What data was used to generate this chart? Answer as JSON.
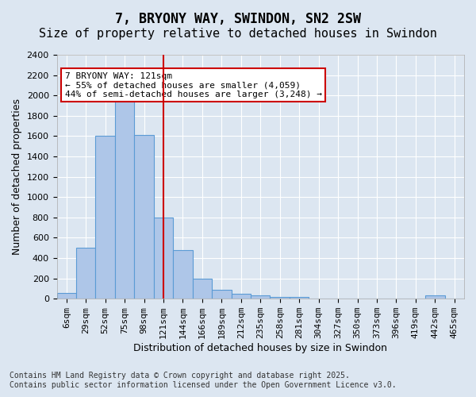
{
  "title": "7, BRYONY WAY, SWINDON, SN2 2SW",
  "subtitle": "Size of property relative to detached houses in Swindon",
  "xlabel": "Distribution of detached houses by size in Swindon",
  "ylabel": "Number of detached properties",
  "footer_line1": "Contains HM Land Registry data © Crown copyright and database right 2025.",
  "footer_line2": "Contains public sector information licensed under the Open Government Licence v3.0.",
  "categories": [
    "6sqm",
    "29sqm",
    "52sqm",
    "75sqm",
    "98sqm",
    "121sqm",
    "144sqm",
    "166sqm",
    "189sqm",
    "212sqm",
    "235sqm",
    "258sqm",
    "281sqm",
    "304sqm",
    "327sqm",
    "350sqm",
    "373sqm",
    "396sqm",
    "419sqm",
    "442sqm",
    "465sqm"
  ],
  "values": [
    60,
    500,
    1600,
    1970,
    1610,
    800,
    480,
    200,
    90,
    45,
    30,
    20,
    15,
    0,
    0,
    0,
    0,
    0,
    0,
    30,
    0
  ],
  "bar_color": "#aec6e8",
  "bar_edge_color": "#5b9bd5",
  "highlight_index": 5,
  "highlight_line_color": "#cc0000",
  "annotation_text": "7 BRYONY WAY: 121sqm\n← 55% of detached houses are smaller (4,059)\n44% of semi-detached houses are larger (3,248) →",
  "annotation_box_color": "#ffffff",
  "annotation_box_edge_color": "#cc0000",
  "ylim": [
    0,
    2400
  ],
  "yticks": [
    0,
    200,
    400,
    600,
    800,
    1000,
    1200,
    1400,
    1600,
    1800,
    2000,
    2200,
    2400
  ],
  "bg_color": "#dce6f1",
  "plot_bg_color": "#dce6f1",
  "grid_color": "#ffffff",
  "title_fontsize": 12,
  "subtitle_fontsize": 11,
  "axis_label_fontsize": 9,
  "tick_fontsize": 8,
  "annotation_fontsize": 8,
  "footer_fontsize": 7
}
